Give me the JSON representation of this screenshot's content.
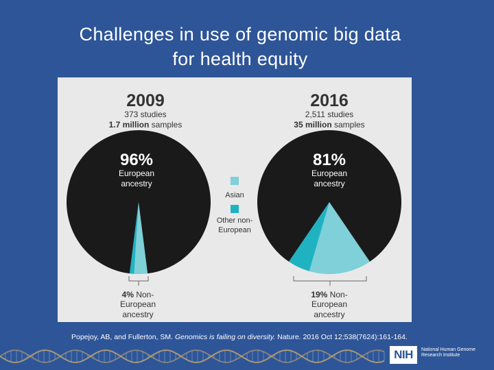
{
  "slide": {
    "title_line1": "Challenges in use of genomic big data",
    "title_line2": "for health equity",
    "citation_a": "Popejoy, AB, and Fullerton, SM. ",
    "citation_italic": "Genomics is failing on diversity.",
    "citation_b": " Nature. 2016 Oct 12;538(7624):161-164.",
    "nih_logo": "NIH",
    "nih_line1": "National Human Genome",
    "nih_line2": "Research Institute"
  },
  "colors": {
    "background": "#2e5597",
    "figure_bg": "#e9e9e9",
    "european": "#1a1a1a",
    "asian": "#7fd0d8",
    "other": "#1fb3c2",
    "text_dark": "#333333"
  },
  "chart_data": [
    {
      "type": "pie",
      "year": "2009",
      "studies": "373 studies",
      "samples_bold": "1.7 million",
      "samples_rest": " samples",
      "big_label": "96%",
      "big_line1": "European",
      "big_line2": "ancestry",
      "small_pct": "4%",
      "small_line1": " Non-",
      "small_line2": "European",
      "small_line3": "ancestry",
      "slices": [
        {
          "name": "European ancestry",
          "value": 96
        },
        {
          "name": "Asian",
          "value": 3
        },
        {
          "name": "Other non-European",
          "value": 1
        }
      ]
    },
    {
      "type": "pie",
      "year": "2016",
      "studies": "2,511 studies",
      "samples_bold": "35 million",
      "samples_rest": " samples",
      "big_label": "81%",
      "big_line1": "European",
      "big_line2": "ancestry",
      "small_pct": "19%",
      "small_line1": " Non-",
      "small_line2": "European",
      "small_line3": "ancestry",
      "slices": [
        {
          "name": "European ancestry",
          "value": 81
        },
        {
          "name": "Asian",
          "value": 14
        },
        {
          "name": "Other non-European",
          "value": 5
        }
      ]
    }
  ],
  "legend": [
    {
      "line1": "Asian",
      "line2": ""
    },
    {
      "line1": "Other non-",
      "line2": "European"
    }
  ]
}
